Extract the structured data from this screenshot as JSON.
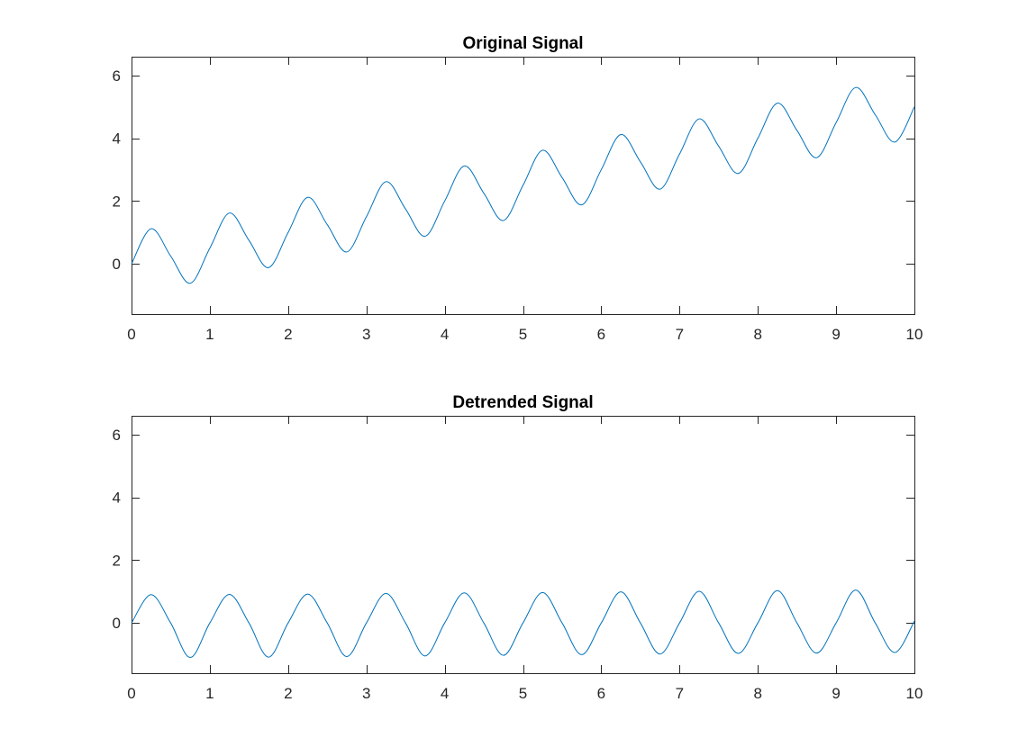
{
  "figure": {
    "background": "#ffffff"
  },
  "chart_data": [
    {
      "type": "line",
      "title": "Original Signal",
      "xlabel": "",
      "ylabel": "",
      "xlim": [
        0,
        10
      ],
      "ylim": [
        -1.6,
        6.6
      ],
      "xticks": [
        0,
        1,
        2,
        3,
        4,
        5,
        6,
        7,
        8,
        9,
        10
      ],
      "yticks": [
        0,
        2,
        4,
        6
      ],
      "grid": false,
      "line_color": "#0072BD",
      "x": [
        0,
        0.25,
        0.5,
        0.75,
        1,
        1.25,
        1.5,
        1.75,
        2,
        2.25,
        2.5,
        2.75,
        3,
        3.25,
        3.5,
        3.75,
        4,
        4.25,
        4.5,
        4.75,
        5,
        5.25,
        5.5,
        5.75,
        6,
        6.25,
        6.5,
        6.75,
        7,
        7.25,
        7.5,
        7.75,
        8,
        8.25,
        8.5,
        8.75,
        9,
        9.25,
        9.5,
        9.75,
        10
      ],
      "series": [
        {
          "values": [
            0,
            1.12,
            0.25,
            -0.62,
            0.5,
            1.62,
            0.75,
            -0.12,
            1.0,
            2.12,
            1.25,
            0.38,
            1.5,
            2.62,
            1.75,
            0.88,
            2.0,
            3.12,
            2.25,
            1.38,
            2.5,
            3.62,
            2.75,
            1.88,
            3.0,
            4.12,
            3.25,
            2.38,
            3.5,
            4.62,
            3.75,
            2.88,
            4.0,
            5.12,
            4.25,
            3.38,
            4.5,
            5.62,
            4.75,
            3.88,
            5.0
          ]
        }
      ]
    },
    {
      "type": "line",
      "title": "Detrended Signal",
      "xlabel": "",
      "ylabel": "",
      "xlim": [
        0,
        10
      ],
      "ylim": [
        -1.6,
        6.6
      ],
      "xticks": [
        0,
        1,
        2,
        3,
        4,
        5,
        6,
        7,
        8,
        9,
        10
      ],
      "yticks": [
        0,
        2,
        4,
        6
      ],
      "grid": false,
      "line_color": "#0072BD",
      "x": [
        0,
        0.25,
        0.5,
        0.75,
        1,
        1.25,
        1.5,
        1.75,
        2,
        2.25,
        2.5,
        2.75,
        3,
        3.25,
        3.5,
        3.75,
        4,
        4.25,
        4.5,
        4.75,
        5,
        5.25,
        5.5,
        5.75,
        6,
        6.25,
        6.5,
        6.75,
        7,
        7.25,
        7.5,
        7.75,
        8,
        8.25,
        8.5,
        8.75,
        9,
        9.25,
        9.5,
        9.75,
        10
      ],
      "series": [
        {
          "values": [
            0,
            0.9,
            0,
            -1.1,
            0,
            0.91,
            0,
            -1.09,
            0,
            0.92,
            0,
            -1.07,
            0,
            0.94,
            0,
            -1.05,
            0,
            0.96,
            0,
            -1.03,
            0,
            0.97,
            0,
            -1.01,
            0,
            0.99,
            0,
            -0.99,
            0,
            1.01,
            0,
            -0.97,
            0,
            1.03,
            0,
            -0.96,
            0,
            1.05,
            0,
            -0.94,
            0.06
          ]
        }
      ]
    }
  ]
}
